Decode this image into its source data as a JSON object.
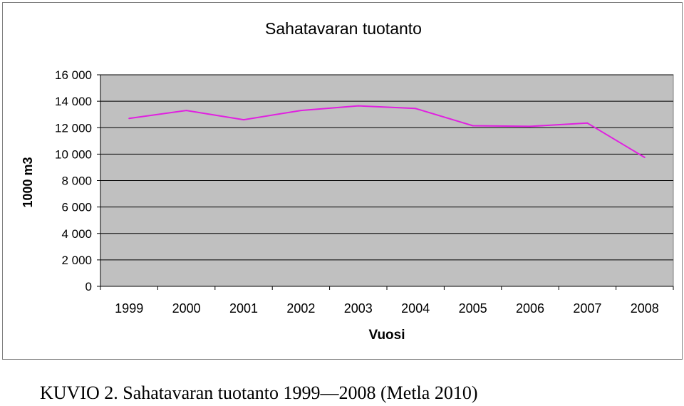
{
  "chart_data": {
    "type": "line",
    "title": "Sahatavaran tuotanto",
    "xlabel": "Vuosi",
    "ylabel": "1000 m3",
    "categories": [
      "1999",
      "2000",
      "2001",
      "2002",
      "2003",
      "2004",
      "2005",
      "2006",
      "2007",
      "2008"
    ],
    "series": [
      {
        "values": [
          12700,
          13300,
          12600,
          13300,
          13650,
          13450,
          12150,
          12100,
          12350,
          9750
        ]
      }
    ],
    "ylim": [
      0,
      16000
    ],
    "yticks": [
      {
        "value": 0,
        "label": "0"
      },
      {
        "value": 2000,
        "label": "2 000"
      },
      {
        "value": 4000,
        "label": "4 000"
      },
      {
        "value": 6000,
        "label": "6 000"
      },
      {
        "value": 8000,
        "label": "8 000"
      },
      {
        "value": 10000,
        "label": "10 000"
      },
      {
        "value": 12000,
        "label": "12 000"
      },
      {
        "value": 14000,
        "label": "14 000"
      },
      {
        "value": 16000,
        "label": "16 000"
      }
    ],
    "grid": true,
    "legend": "none",
    "colors": {
      "line": "#e020e0",
      "plot_background": "#c0c0c0",
      "gridline": "#000000"
    }
  },
  "caption": "KUVIO 2. Sahatavaran tuotanto 1999—2008 (Metla 2010)"
}
